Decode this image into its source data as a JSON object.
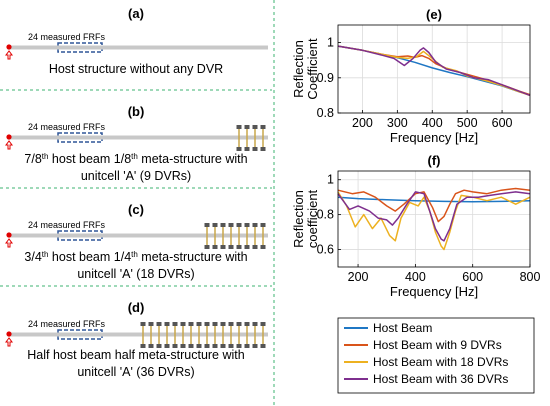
{
  "left_panels": [
    {
      "label": "(a)",
      "frf_label": "24 measured FRFs",
      "caption_lines": [
        "Host structure without any DVR"
      ],
      "dvr_count": 0
    },
    {
      "label": "(b)",
      "frf_label": "24 measured FRFs",
      "caption_lines": [
        "7/8th host beam 1/8th meta-structure with",
        "unitcell 'A' (9 DVRs)"
      ],
      "dvr_count": 4
    },
    {
      "label": "(c)",
      "frf_label": "24 measured FRFs",
      "caption_lines": [
        "3/4th host beam 1/4th meta-structure with",
        "unitcell 'A' (18 DVRs)"
      ],
      "dvr_count": 8
    },
    {
      "label": "(d)",
      "frf_label": "24 measured FRFs",
      "caption_lines": [
        "Half host beam half meta-structure with",
        "unitcell 'A' (36 DVRs)"
      ],
      "dvr_count": 16
    }
  ],
  "colors": {
    "host": "#1f77c4",
    "dvr9": "#d9541a",
    "dvr18": "#edb120",
    "dvr36": "#7e2f8e",
    "beam": "#c8c8c8",
    "post": "#c9a74a",
    "mass": "#555555",
    "frf_box": "#2f5597",
    "divider": "#3cb371",
    "force": "#e00000"
  },
  "chart_data": [
    {
      "label": "(e)",
      "type": "line",
      "ylabel": [
        "Reflection",
        "Coefficient"
      ],
      "xlabel": "Frequency [Hz]",
      "xlim": [
        130,
        680
      ],
      "ylim": [
        0.8,
        1.05
      ],
      "xticks": [
        200,
        300,
        400,
        500,
        600
      ],
      "yticks": [
        0.8,
        0.9,
        1
      ],
      "grid": true,
      "series": [
        {
          "name": "Host Beam",
          "color_key": "host",
          "x": [
            130,
            200,
            250,
            300,
            350,
            400,
            450,
            500,
            550,
            600,
            650,
            680
          ],
          "y": [
            0.99,
            0.978,
            0.968,
            0.957,
            0.944,
            0.928,
            0.915,
            0.903,
            0.89,
            0.877,
            0.86,
            0.852
          ]
        },
        {
          "name": "Host Beam with 9 DVRs",
          "color_key": "dvr9",
          "x": [
            130,
            200,
            250,
            300,
            330,
            350,
            370,
            390,
            410,
            450,
            500,
            550,
            600,
            650,
            680
          ],
          "y": [
            0.99,
            0.978,
            0.968,
            0.96,
            0.962,
            0.958,
            0.963,
            0.955,
            0.94,
            0.923,
            0.91,
            0.896,
            0.88,
            0.862,
            0.852
          ]
        },
        {
          "name": "Host Beam with 18 DVRs",
          "color_key": "dvr18",
          "x": [
            130,
            200,
            250,
            300,
            330,
            355,
            375,
            400,
            430,
            470,
            500,
            550,
            600,
            650,
            680
          ],
          "y": [
            0.99,
            0.978,
            0.968,
            0.958,
            0.955,
            0.96,
            0.975,
            0.955,
            0.93,
            0.92,
            0.905,
            0.893,
            0.878,
            0.86,
            0.85
          ]
        },
        {
          "name": "Host Beam with 36 DVRs",
          "color_key": "dvr36",
          "x": [
            130,
            200,
            250,
            290,
            320,
            345,
            365,
            375,
            390,
            410,
            440,
            480,
            520,
            560,
            600,
            640,
            680
          ],
          "y": [
            0.99,
            0.978,
            0.966,
            0.955,
            0.935,
            0.955,
            0.978,
            0.985,
            0.972,
            0.945,
            0.925,
            0.915,
            0.9,
            0.895,
            0.88,
            0.865,
            0.85
          ]
        }
      ]
    },
    {
      "label": "(f)",
      "type": "line",
      "ylabel": [
        "Reflection",
        "coefficient"
      ],
      "xlabel": "Frequency [Hz]",
      "xlim": [
        130,
        800
      ],
      "ylim": [
        0.5,
        1.05
      ],
      "xticks": [
        200,
        400,
        600,
        800
      ],
      "yticks": [
        0.6,
        0.8,
        1
      ],
      "grid": true,
      "series": [
        {
          "name": "Host Beam",
          "color_key": "host",
          "x": [
            130,
            200,
            300,
            400,
            500,
            600,
            700,
            800
          ],
          "y": [
            0.9,
            0.892,
            0.885,
            0.88,
            0.876,
            0.874,
            0.876,
            0.88
          ]
        },
        {
          "name": "Host Beam with 9 DVRs",
          "color_key": "dvr9",
          "x": [
            130,
            180,
            220,
            260,
            300,
            330,
            360,
            400,
            430,
            460,
            480,
            500,
            520,
            540,
            570,
            600,
            650,
            700,
            750,
            800
          ],
          "y": [
            0.94,
            0.92,
            0.93,
            0.9,
            0.85,
            0.82,
            0.86,
            0.92,
            0.93,
            0.84,
            0.76,
            0.79,
            0.86,
            0.92,
            0.94,
            0.93,
            0.92,
            0.94,
            0.95,
            0.94
          ]
        },
        {
          "name": "Host Beam with 18 DVRs",
          "color_key": "dvr18",
          "x": [
            130,
            160,
            190,
            220,
            250,
            280,
            310,
            330,
            350,
            380,
            410,
            430,
            450,
            470,
            490,
            500,
            520,
            540,
            560,
            600,
            650,
            700,
            750,
            800
          ],
          "y": [
            0.93,
            0.85,
            0.73,
            0.8,
            0.72,
            0.78,
            0.68,
            0.65,
            0.78,
            0.87,
            0.85,
            0.9,
            0.82,
            0.7,
            0.62,
            0.6,
            0.7,
            0.82,
            0.91,
            0.9,
            0.88,
            0.9,
            0.86,
            0.9
          ]
        },
        {
          "name": "Host Beam with 36 DVRs",
          "color_key": "dvr36",
          "x": [
            130,
            170,
            200,
            240,
            270,
            300,
            320,
            340,
            370,
            400,
            430,
            450,
            470,
            490,
            500,
            520,
            545,
            580,
            620,
            660,
            700,
            750,
            800
          ],
          "y": [
            0.92,
            0.83,
            0.85,
            0.82,
            0.78,
            0.77,
            0.74,
            0.78,
            0.86,
            0.93,
            0.92,
            0.82,
            0.72,
            0.66,
            0.65,
            0.72,
            0.86,
            0.9,
            0.9,
            0.91,
            0.92,
            0.93,
            0.92
          ]
        }
      ]
    }
  ],
  "legend": {
    "items": [
      {
        "label": "Host Beam",
        "color_key": "host"
      },
      {
        "label": "Host Beam with 9 DVRs",
        "color_key": "dvr9"
      },
      {
        "label": "Host Beam with 18 DVRs",
        "color_key": "dvr18"
      },
      {
        "label": "Host Beam with 36 DVRs",
        "color_key": "dvr36"
      }
    ]
  }
}
